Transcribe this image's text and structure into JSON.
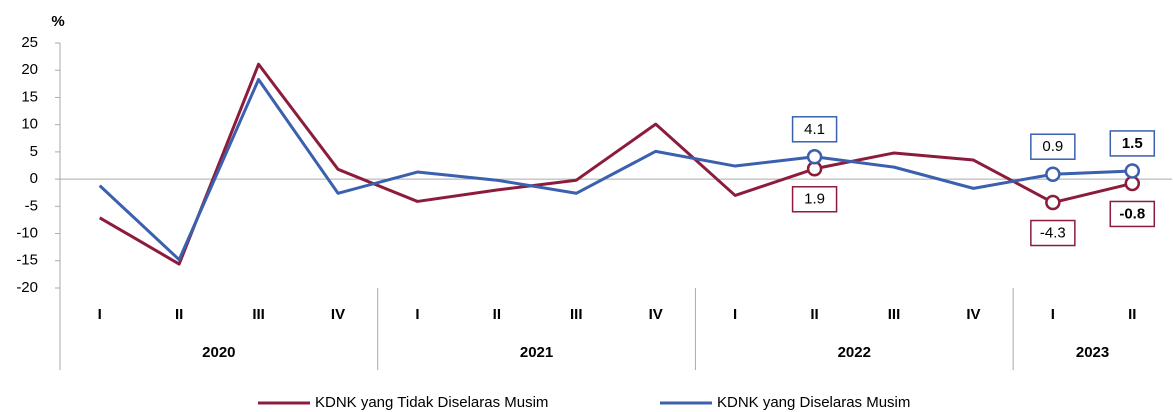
{
  "chart_data": {
    "type": "line",
    "y_label": "%",
    "categories": [
      "I",
      "II",
      "III",
      "IV",
      "I",
      "II",
      "III",
      "IV",
      "I",
      "II",
      "III",
      "IV",
      "I",
      "II"
    ],
    "groups": [
      {
        "label": "2020",
        "size": 4
      },
      {
        "label": "2021",
        "size": 4
      },
      {
        "label": "2022",
        "size": 4
      },
      {
        "label": "2023",
        "size": 2
      }
    ],
    "series": [
      {
        "name": "KDNK yang Tidak Diselaras Musim",
        "color": "#8c1c3c",
        "values": [
          -7.1,
          -15.6,
          21.1,
          1.8,
          -4.1,
          -2.0,
          -0.2,
          10.1,
          -3.0,
          1.9,
          4.8,
          3.5,
          -4.3,
          -0.8
        ],
        "value_labels": [
          null,
          null,
          null,
          null,
          null,
          null,
          null,
          null,
          null,
          "1.9",
          null,
          null,
          "-4.3",
          "-0.8"
        ]
      },
      {
        "name": "KDNK yang Diselaras Musim",
        "color": "#3a60ae",
        "values": [
          -1.2,
          -14.8,
          18.3,
          -2.6,
          1.3,
          -0.2,
          -2.6,
          5.1,
          2.4,
          4.1,
          2.2,
          -1.7,
          0.9,
          1.5
        ],
        "value_labels": [
          null,
          null,
          null,
          null,
          null,
          null,
          null,
          null,
          null,
          "4.1",
          null,
          null,
          "0.9",
          "1.5"
        ]
      }
    ],
    "ylim": [
      -20,
      25
    ],
    "yticks": [
      -20,
      -15,
      -10,
      -5,
      0,
      5,
      10,
      15,
      20,
      25
    ]
  }
}
